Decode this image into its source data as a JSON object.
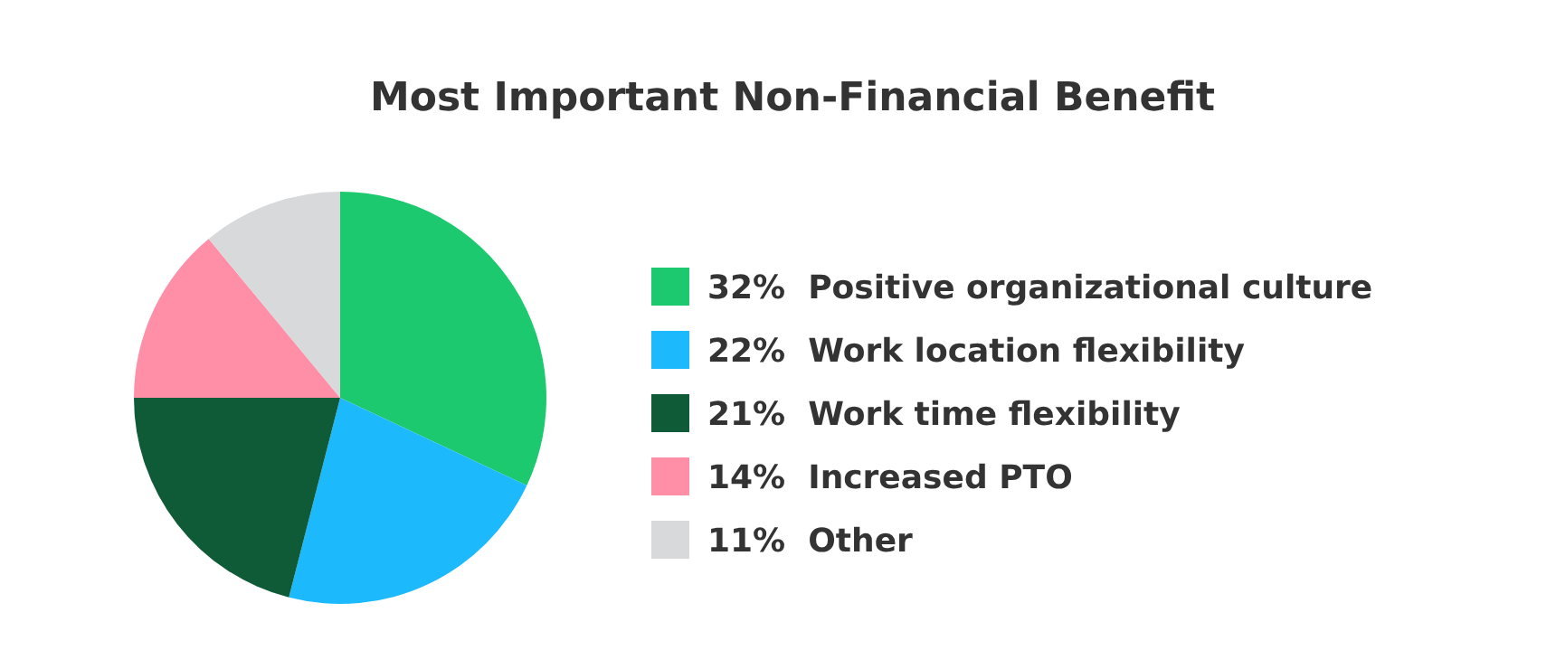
{
  "chart_data": {
    "type": "pie",
    "title": "Most Important Non-Financial Benefit",
    "categories": [
      "Positive organizational culture",
      "Work location flexibility",
      "Work time flexibility",
      "Increased PTO",
      "Other"
    ],
    "values": [
      32,
      22,
      21,
      14,
      11
    ],
    "value_labels": [
      "32%",
      "22%",
      "21%",
      "14%",
      "11%"
    ],
    "colors": [
      "#1dc96f",
      "#1cb9fd",
      "#0f5b37",
      "#ff8ea7",
      "#d8d9db"
    ],
    "legend": "right"
  }
}
